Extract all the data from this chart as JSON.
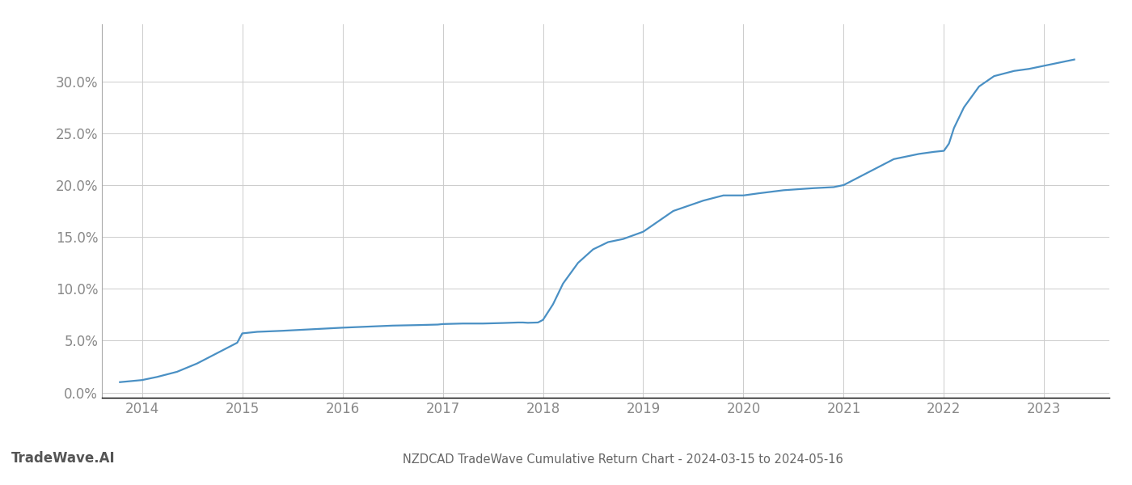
{
  "title": "NZDCAD TradeWave Cumulative Return Chart - 2024-03-15 to 2024-05-16",
  "watermark": "TradeWave.AI",
  "line_color": "#4a90c4",
  "background_color": "#ffffff",
  "grid_color": "#cccccc",
  "x_years": [
    2014,
    2015,
    2016,
    2017,
    2018,
    2019,
    2020,
    2021,
    2022,
    2023
  ],
  "x_data": [
    2013.78,
    2014.0,
    2014.15,
    2014.35,
    2014.55,
    2014.75,
    2014.95,
    2015.0,
    2015.15,
    2015.4,
    2015.7,
    2015.9,
    2016.0,
    2016.25,
    2016.5,
    2016.75,
    2016.95,
    2017.0,
    2017.2,
    2017.4,
    2017.6,
    2017.75,
    2017.8,
    2017.85,
    2017.95,
    2018.0,
    2018.1,
    2018.2,
    2018.35,
    2018.5,
    2018.65,
    2018.8,
    2019.0,
    2019.15,
    2019.3,
    2019.45,
    2019.6,
    2019.8,
    2020.0,
    2020.15,
    2020.4,
    2020.7,
    2020.9,
    2021.0,
    2021.2,
    2021.5,
    2021.75,
    2021.9,
    2022.0,
    2022.05,
    2022.1,
    2022.2,
    2022.35,
    2022.5,
    2022.7,
    2022.85,
    2023.0,
    2023.15,
    2023.3
  ],
  "y_data": [
    1.0,
    1.2,
    1.5,
    2.0,
    2.8,
    3.8,
    4.8,
    5.7,
    5.85,
    5.95,
    6.1,
    6.2,
    6.25,
    6.35,
    6.45,
    6.5,
    6.55,
    6.6,
    6.65,
    6.65,
    6.7,
    6.75,
    6.75,
    6.72,
    6.75,
    7.0,
    8.5,
    10.5,
    12.5,
    13.8,
    14.5,
    14.8,
    15.5,
    16.5,
    17.5,
    18.0,
    18.5,
    19.0,
    19.0,
    19.2,
    19.5,
    19.7,
    19.8,
    20.0,
    21.0,
    22.5,
    23.0,
    23.2,
    23.3,
    24.0,
    25.5,
    27.5,
    29.5,
    30.5,
    31.0,
    31.2,
    31.5,
    31.8,
    32.1
  ],
  "ylim": [
    -0.5,
    35.5
  ],
  "yticks": [
    0.0,
    5.0,
    10.0,
    15.0,
    20.0,
    25.0,
    30.0
  ],
  "xlim": [
    2013.6,
    2023.65
  ],
  "title_fontsize": 10.5,
  "watermark_fontsize": 12,
  "tick_fontsize": 12,
  "title_color": "#666666",
  "watermark_color": "#555555",
  "tick_color": "#888888",
  "line_width": 1.6,
  "spine_color": "#aaaaaa"
}
